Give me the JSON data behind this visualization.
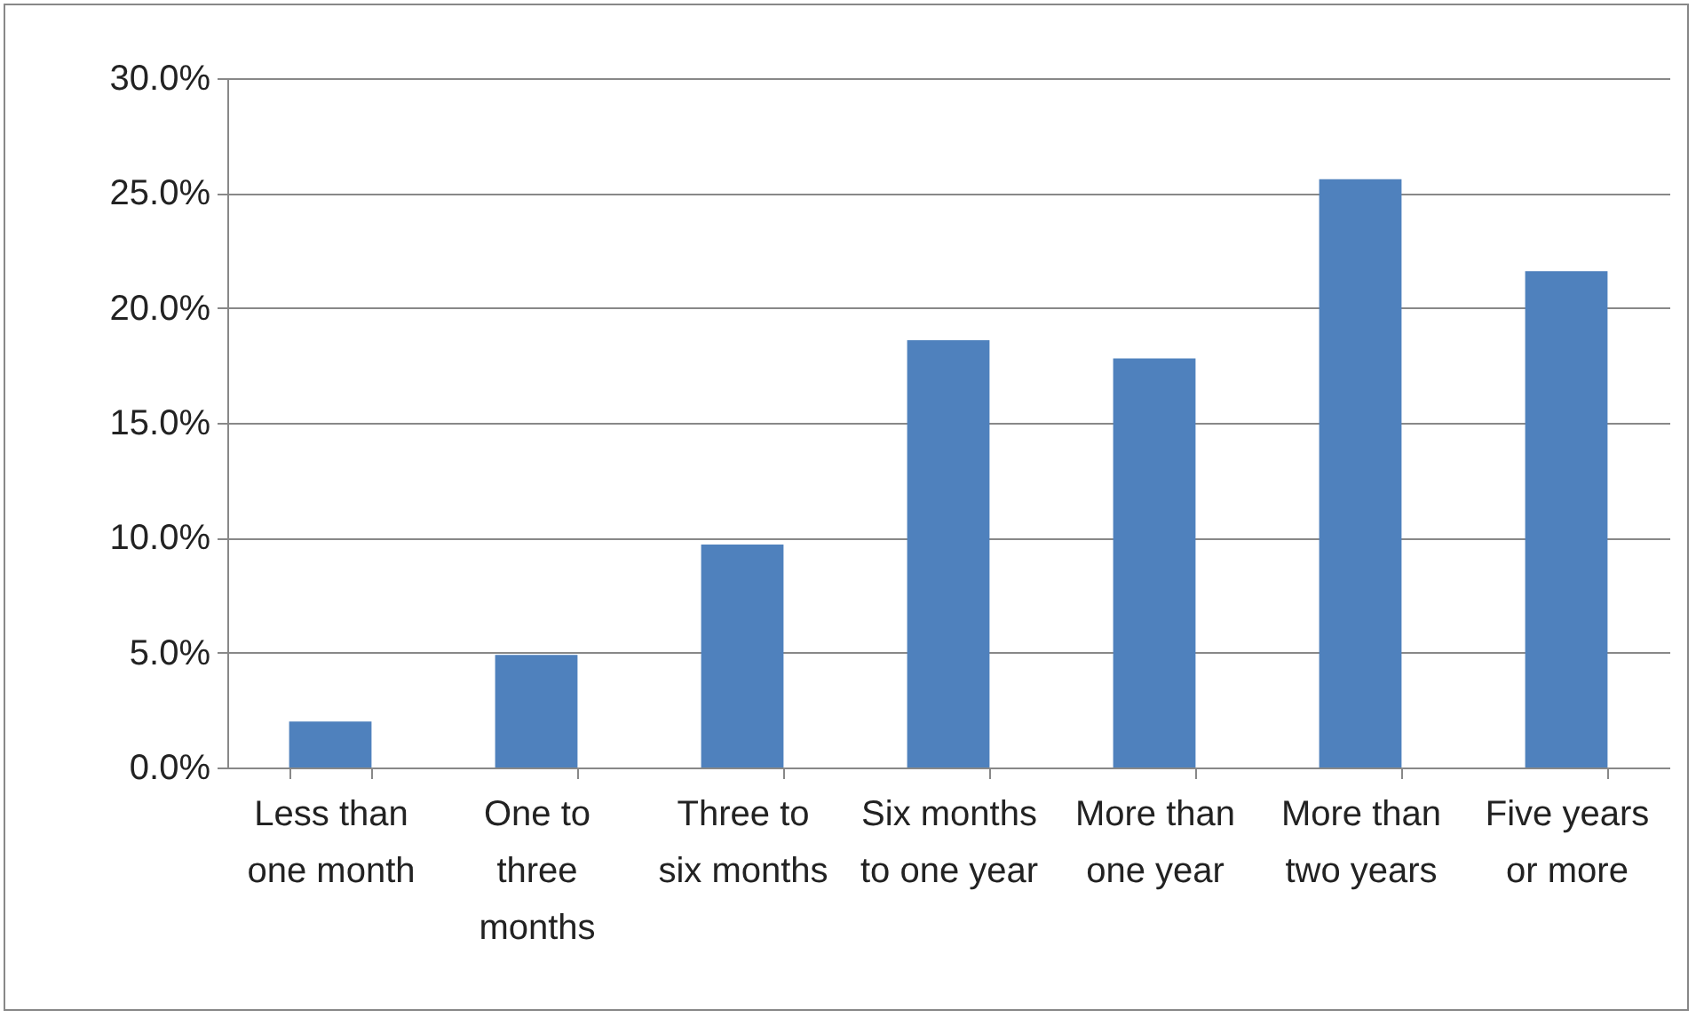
{
  "chart_data": {
    "type": "bar",
    "categories": [
      "Less than one month",
      "One to three months",
      "Three to six months",
      "Six months to one year",
      "More than one year",
      "More than two years",
      "Five years or more"
    ],
    "values": [
      2.0,
      4.9,
      9.7,
      18.6,
      17.8,
      25.6,
      21.6
    ],
    "color": "#4f81bd",
    "ylim": [
      0,
      30
    ],
    "yticks": [
      {
        "value": 0,
        "label": "0.0%"
      },
      {
        "value": 5,
        "label": "5.0%"
      },
      {
        "value": 10,
        "label": "10.0%"
      },
      {
        "value": 15,
        "label": "15.0%"
      },
      {
        "value": 20,
        "label": "20.0%"
      },
      {
        "value": 25,
        "label": "25.0%"
      },
      {
        "value": 30,
        "label": "30.0%"
      }
    ],
    "grid": "y"
  }
}
